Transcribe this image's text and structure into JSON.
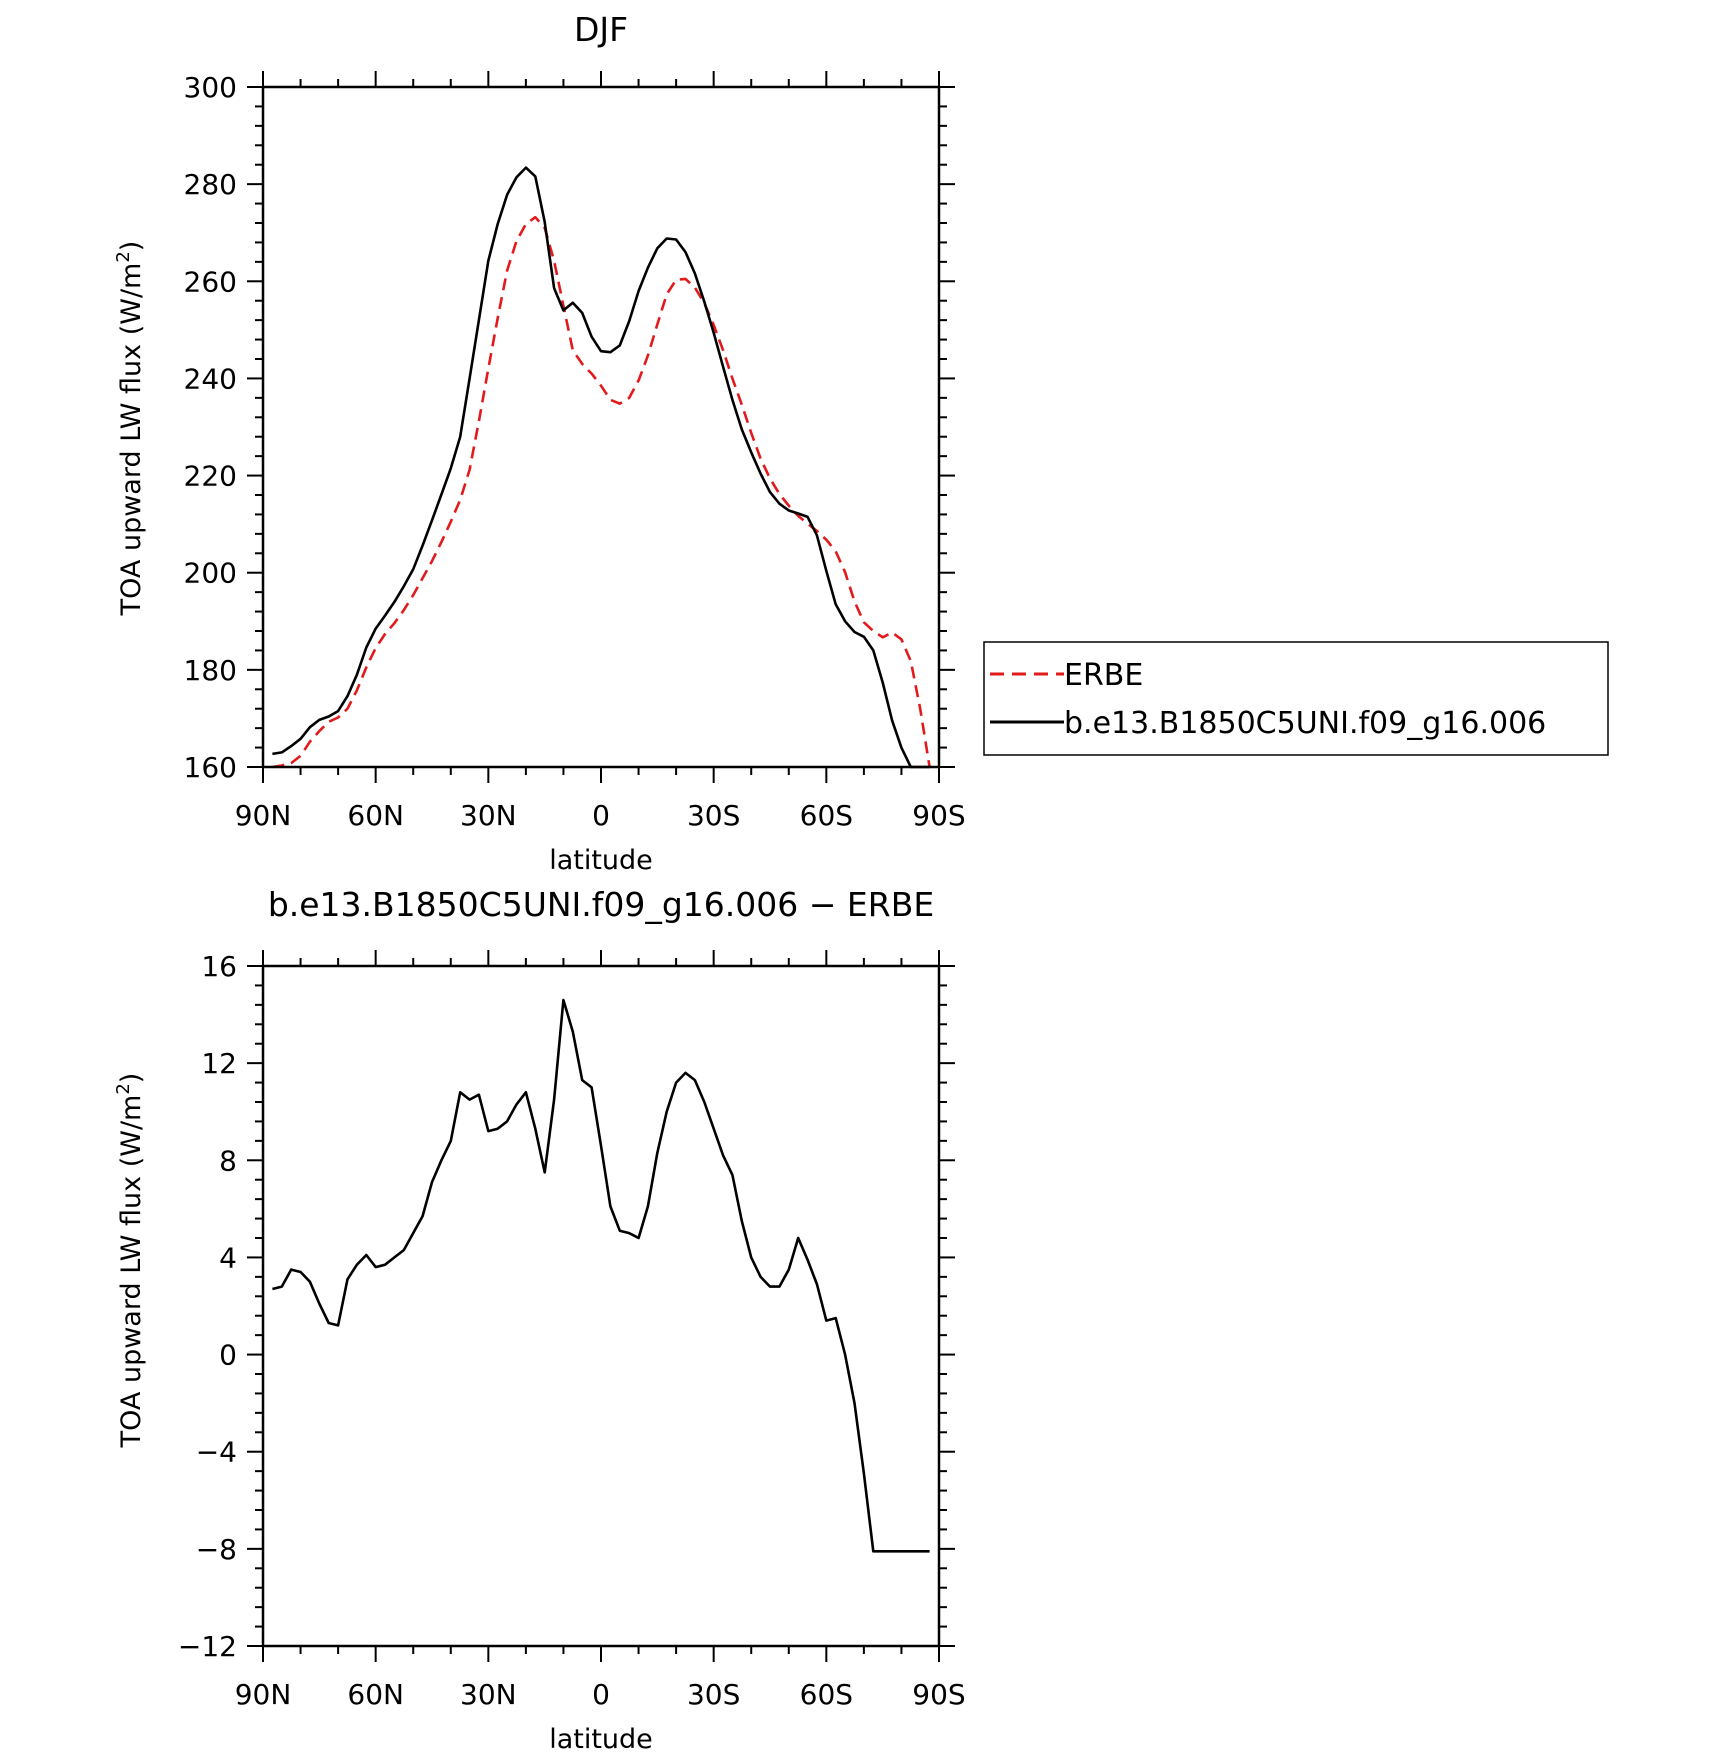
{
  "chart_data": [
    {
      "type": "line",
      "title": "DJF",
      "xlabel": "latitude",
      "ylabel": "TOA upward LW flux (W/m²)",
      "ylabel_main": "TOA upward LW flux (W/m",
      "ylabel_sup": "2",
      "ylabel_end": ")",
      "xlim": [
        90,
        -90
      ],
      "ylim": [
        160,
        300
      ],
      "x_ticks": [
        90,
        60,
        30,
        0,
        -30,
        -60,
        -90
      ],
      "x_tick_labels": [
        "90N",
        "60N",
        "30N",
        "0",
        "30S",
        "60S",
        "90S"
      ],
      "y_ticks": [
        160,
        180,
        200,
        220,
        240,
        260,
        280,
        300
      ],
      "y_tick_labels": [
        "160",
        "180",
        "200",
        "220",
        "240",
        "260",
        "280",
        "300"
      ],
      "legend_position": "right",
      "x": [
        87.5,
        85,
        82.5,
        80,
        77.5,
        75,
        72.5,
        70,
        67.5,
        65,
        62.5,
        60,
        57.5,
        55,
        52.5,
        50,
        47.5,
        45,
        42.5,
        40,
        37.5,
        35,
        32.5,
        30,
        27.5,
        25,
        22.5,
        20,
        17.5,
        15,
        12.5,
        10,
        7.5,
        5,
        2.5,
        0,
        -2.5,
        -5,
        -7.5,
        -10,
        -12.5,
        -15,
        -17.5,
        -20,
        -22.5,
        -25,
        -27.5,
        -30,
        -32.5,
        -35,
        -37.5,
        -40,
        -42.5,
        -45,
        -47.5,
        -50,
        -52.5,
        -55,
        -57.5,
        -60,
        -62.5,
        -65,
        -67.5,
        -70,
        -72.5,
        -75,
        -77.5,
        -80,
        -82.5,
        -85,
        -87.5
      ],
      "series": [
        {
          "name": "ERBE",
          "color": "#e31a1c",
          "dash": "dashed",
          "values": [
            160.0,
            160.3,
            160.8,
            162.3,
            165.2,
            167.4,
            169.3,
            170.2,
            172.0,
            175.8,
            180.5,
            184.5,
            187.4,
            189.6,
            192.3,
            195.4,
            198.9,
            202.4,
            206.3,
            210.5,
            215.0,
            221.2,
            231.2,
            242.0,
            252.4,
            262.2,
            268.3,
            271.8,
            273.2,
            271.0,
            264.2,
            255.0,
            245.8,
            243.0,
            241.0,
            238.5,
            235.6,
            234.8,
            236.0,
            239.6,
            244.7,
            251.1,
            257.3,
            260.3,
            260.5,
            258.7,
            255.5,
            251.0,
            245.8,
            240.0,
            234.6,
            228.8,
            223.5,
            219.4,
            216.2,
            213.8,
            211.7,
            210.1,
            208.6,
            206.8,
            204.4,
            200.1,
            194.1,
            189.8,
            188.0,
            186.7,
            187.7,
            186.3,
            181.8,
            172.0,
            160.0
          ]
        },
        {
          "name": "b.e13.B1850C5UNI.f09_g16.006",
          "color": "#000000",
          "dash": "solid",
          "values": [
            162.7,
            163.0,
            164.3,
            165.8,
            168.2,
            169.7,
            170.4,
            171.5,
            174.6,
            179.0,
            184.6,
            188.5,
            191.2,
            194.0,
            197.2,
            200.7,
            205.6,
            210.8,
            216.1,
            221.5,
            228.0,
            240.0,
            252.0,
            264.2,
            271.8,
            277.8,
            281.4,
            283.4,
            281.6,
            272.2,
            258.6,
            254.0,
            255.6,
            253.5,
            248.6,
            245.6,
            245.4,
            246.8,
            251.8,
            258.0,
            262.8,
            266.8,
            268.8,
            268.6,
            266.0,
            261.6,
            255.8,
            249.4,
            242.4,
            235.6,
            229.5,
            224.8,
            220.4,
            216.6,
            214.2,
            212.8,
            212.2,
            211.5,
            207.7,
            200.4,
            193.5,
            190.0,
            187.8,
            186.8,
            184.0,
            177.4,
            169.6,
            164.0,
            160.0,
            160.0,
            160.0
          ]
        }
      ]
    },
    {
      "type": "line",
      "title": "b.e13.B1850C5UNI.f09_g16.006 − ERBE",
      "xlabel": "latitude",
      "ylabel": "TOA upward LW flux (W/m²)",
      "ylabel_main": "TOA upward LW flux (W/m",
      "ylabel_sup": "2",
      "ylabel_end": ")",
      "xlim": [
        90,
        -90
      ],
      "ylim": [
        -12,
        16
      ],
      "x_ticks": [
        90,
        60,
        30,
        0,
        -30,
        -60,
        -90
      ],
      "x_tick_labels": [
        "90N",
        "60N",
        "30N",
        "0",
        "30S",
        "60S",
        "90S"
      ],
      "y_ticks": [
        -12,
        -8,
        -4,
        0,
        4,
        8,
        12,
        16
      ],
      "y_tick_labels": [
        "−12",
        "−8",
        "−4",
        "0",
        "4",
        "8",
        "12",
        "16"
      ],
      "x": [
        87.5,
        85,
        82.5,
        80,
        77.5,
        75,
        72.5,
        70,
        67.5,
        65,
        62.5,
        60,
        57.5,
        55,
        52.5,
        50,
        47.5,
        45,
        42.5,
        40,
        37.5,
        35,
        32.5,
        30,
        27.5,
        25,
        22.5,
        20,
        17.5,
        15,
        12.5,
        10,
        7.5,
        5,
        2.5,
        0,
        -2.5,
        -5,
        -7.5,
        -10,
        -12.5,
        -15,
        -17.5,
        -20,
        -22.5,
        -25,
        -27.5,
        -30,
        -32.5,
        -35,
        -37.5,
        -40,
        -42.5,
        -45,
        -47.5,
        -50,
        -52.5,
        -55,
        -57.5,
        -60,
        -62.5,
        -65,
        -67.5,
        -70,
        -72.5,
        -75,
        -77.5,
        -80,
        -82.5,
        -85,
        -87.5
      ],
      "series": [
        {
          "name": "",
          "color": "#000000",
          "dash": "solid",
          "values": [
            2.7,
            2.8,
            3.5,
            3.4,
            3.0,
            2.1,
            1.3,
            1.2,
            3.1,
            3.7,
            4.1,
            3.6,
            3.7,
            4.0,
            4.3,
            5.0,
            5.7,
            7.1,
            8.0,
            8.8,
            10.8,
            10.5,
            10.7,
            9.2,
            9.3,
            9.6,
            10.3,
            10.8,
            9.3,
            7.5,
            10.5,
            14.6,
            13.3,
            11.3,
            11.0,
            8.6,
            6.1,
            5.1,
            5.0,
            4.8,
            6.1,
            8.3,
            10.0,
            11.2,
            11.6,
            11.3,
            10.4,
            9.3,
            8.2,
            7.4,
            5.5,
            4.0,
            3.2,
            2.8,
            2.8,
            3.5,
            4.8,
            3.9,
            2.9,
            1.4,
            1.5,
            0.0,
            -2.0,
            -4.9,
            -8.1,
            -8.1,
            -8.1,
            -8.1,
            -8.1,
            -8.1,
            -8.1
          ]
        }
      ]
    }
  ]
}
